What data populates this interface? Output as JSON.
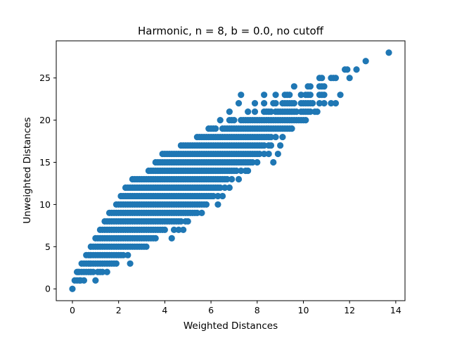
{
  "chart_data": {
    "type": "scatter",
    "title": "Harmonic, n = 8, b = 0.0, no cutoff",
    "xlabel": "Weighted Distances",
    "ylabel": "Unweighted Distances",
    "xlim": [
      -0.7,
      14.4
    ],
    "ylim": [
      -1.4,
      29.4
    ],
    "xticks": [
      0,
      2,
      4,
      6,
      8,
      10,
      12,
      14
    ],
    "yticks": [
      0,
      5,
      10,
      15,
      20,
      25
    ],
    "xtick_labels": [
      "0",
      "2",
      "4",
      "6",
      "8",
      "10",
      "12",
      "14"
    ],
    "ytick_labels": [
      "0",
      "5",
      "10",
      "15",
      "20",
      "25"
    ],
    "marker_color": "#1f77b4",
    "grid": false,
    "legend": "none",
    "rows": [
      {
        "y": 0,
        "x": [
          0.0
        ]
      },
      {
        "y": 1,
        "x": [
          0.1,
          0.2,
          0.3,
          0.35,
          0.5,
          1.0
        ]
      },
      {
        "y": 2,
        "x": [
          0.2,
          0.25,
          0.3,
          0.4,
          0.5,
          0.6,
          0.7,
          0.8,
          0.9,
          1.1,
          1.2,
          1.3,
          1.5
        ]
      },
      {
        "y": 3,
        "x": [
          0.4,
          0.5,
          0.6,
          0.7,
          0.8,
          0.9,
          1.0,
          1.1,
          1.2,
          1.3,
          1.4,
          1.5,
          1.6,
          1.7,
          1.8,
          1.9,
          2.5
        ]
      },
      {
        "y": 4,
        "x": [
          0.6,
          0.7,
          0.8,
          0.9,
          1.0,
          1.1,
          1.2,
          1.3,
          1.4,
          1.5,
          1.6,
          1.7,
          1.8,
          1.9,
          2.0,
          2.1,
          2.2,
          2.4
        ]
      },
      {
        "y": 5,
        "x": [
          0.8,
          0.9,
          1.0,
          1.1,
          1.2,
          1.3,
          1.4,
          1.5,
          1.6,
          1.7,
          1.8,
          1.9,
          2.0,
          2.1,
          2.2,
          2.3,
          2.4,
          2.5,
          2.6,
          2.7,
          2.8,
          2.9,
          3.0,
          3.1,
          3.2
        ]
      },
      {
        "y": 6,
        "x": [
          1.0,
          1.1,
          1.2,
          1.3,
          1.4,
          1.5,
          1.6,
          1.7,
          1.8,
          1.9,
          2.0,
          2.1,
          2.2,
          2.3,
          2.4,
          2.5,
          2.6,
          2.7,
          2.8,
          2.9,
          3.0,
          3.1,
          3.2,
          3.3,
          3.4,
          3.5,
          3.6,
          4.3
        ]
      },
      {
        "y": 7,
        "x": [
          1.2,
          1.3,
          1.4,
          1.5,
          1.6,
          1.7,
          1.8,
          1.9,
          2.0,
          2.1,
          2.2,
          2.3,
          2.4,
          2.5,
          2.6,
          2.7,
          2.8,
          2.9,
          3.0,
          3.1,
          3.2,
          3.3,
          3.4,
          3.5,
          3.6,
          3.7,
          3.8,
          3.9,
          4.0,
          4.4,
          4.6,
          4.8
        ]
      },
      {
        "y": 8,
        "x": [
          1.4,
          1.5,
          1.6,
          1.7,
          1.8,
          1.9,
          2.0,
          2.1,
          2.2,
          2.3,
          2.4,
          2.5,
          2.6,
          2.7,
          2.8,
          2.9,
          3.0,
          3.1,
          3.2,
          3.3,
          3.4,
          3.5,
          3.6,
          3.7,
          3.8,
          3.9,
          4.0,
          4.1,
          4.2,
          4.3,
          4.4,
          4.5,
          4.6,
          4.7,
          4.9,
          5.0
        ]
      },
      {
        "y": 9,
        "x": [
          1.6,
          1.7,
          1.8,
          1.9,
          2.0,
          2.1,
          2.2,
          2.3,
          2.4,
          2.5,
          2.6,
          2.7,
          2.8,
          2.9,
          3.0,
          3.1,
          3.2,
          3.3,
          3.4,
          3.5,
          3.6,
          3.7,
          3.8,
          3.9,
          4.0,
          4.1,
          4.2,
          4.3,
          4.4,
          4.5,
          4.6,
          4.7,
          4.8,
          4.9,
          5.0,
          5.1,
          5.2,
          5.3,
          5.4,
          5.6
        ]
      },
      {
        "y": 10,
        "x": [
          1.9,
          2.0,
          2.1,
          2.2,
          2.3,
          2.4,
          2.5,
          2.6,
          2.7,
          2.8,
          2.9,
          3.0,
          3.1,
          3.2,
          3.3,
          3.4,
          3.5,
          3.6,
          3.7,
          3.8,
          3.9,
          4.0,
          4.1,
          4.2,
          4.3,
          4.4,
          4.5,
          4.6,
          4.7,
          4.8,
          4.9,
          5.0,
          5.1,
          5.2,
          5.3,
          5.4,
          5.5,
          5.6,
          5.7,
          5.8,
          6.3
        ]
      },
      {
        "y": 11,
        "x": [
          2.1,
          2.2,
          2.3,
          2.4,
          2.5,
          2.6,
          2.7,
          2.8,
          2.9,
          3.0,
          3.1,
          3.2,
          3.3,
          3.4,
          3.5,
          3.6,
          3.7,
          3.8,
          3.9,
          4.0,
          4.1,
          4.2,
          4.3,
          4.4,
          4.5,
          4.6,
          4.7,
          4.8,
          4.9,
          5.0,
          5.1,
          5.2,
          5.3,
          5.4,
          5.5,
          5.6,
          5.7,
          5.8,
          5.9,
          6.0,
          6.1,
          6.3,
          6.5
        ]
      },
      {
        "y": 12,
        "x": [
          2.3,
          2.4,
          2.5,
          2.6,
          2.7,
          2.8,
          2.9,
          3.0,
          3.1,
          3.2,
          3.3,
          3.4,
          3.5,
          3.6,
          3.7,
          3.8,
          3.9,
          4.0,
          4.1,
          4.2,
          4.3,
          4.4,
          4.5,
          4.6,
          4.7,
          4.8,
          4.9,
          5.0,
          5.1,
          5.2,
          5.3,
          5.4,
          5.5,
          5.6,
          5.7,
          5.8,
          5.9,
          6.0,
          6.1,
          6.2,
          6.3,
          6.4,
          6.6,
          6.8
        ]
      },
      {
        "y": 13,
        "x": [
          2.6,
          2.7,
          2.8,
          2.9,
          3.0,
          3.1,
          3.2,
          3.3,
          3.4,
          3.5,
          3.6,
          3.7,
          3.8,
          3.9,
          4.0,
          4.1,
          4.2,
          4.3,
          4.4,
          4.5,
          4.6,
          4.7,
          4.8,
          4.9,
          5.0,
          5.1,
          5.2,
          5.3,
          5.4,
          5.5,
          5.6,
          5.7,
          5.8,
          5.9,
          6.0,
          6.1,
          6.2,
          6.3,
          6.4,
          6.5,
          6.6,
          6.7,
          6.9,
          7.2
        ]
      },
      {
        "y": 14,
        "x": [
          3.3,
          3.4,
          3.5,
          3.6,
          3.7,
          3.8,
          3.9,
          4.0,
          4.1,
          4.2,
          4.3,
          4.4,
          4.5,
          4.6,
          4.7,
          4.8,
          4.9,
          5.0,
          5.1,
          5.2,
          5.3,
          5.4,
          5.5,
          5.6,
          5.7,
          5.8,
          5.9,
          6.0,
          6.1,
          6.2,
          6.3,
          6.4,
          6.5,
          6.6,
          6.7,
          6.8,
          6.9,
          7.0,
          7.1,
          7.3,
          7.5,
          7.6
        ]
      },
      {
        "y": 15,
        "x": [
          3.6,
          3.7,
          3.8,
          3.9,
          4.0,
          4.1,
          4.2,
          4.3,
          4.4,
          4.5,
          4.6,
          4.7,
          4.8,
          4.9,
          5.0,
          5.1,
          5.2,
          5.3,
          5.4,
          5.5,
          5.6,
          5.7,
          5.8,
          5.9,
          6.0,
          6.1,
          6.2,
          6.3,
          6.4,
          6.5,
          6.6,
          6.7,
          6.8,
          6.9,
          7.0,
          7.1,
          7.2,
          7.3,
          7.4,
          7.5,
          7.6,
          7.7,
          7.8,
          8.0,
          8.7
        ]
      },
      {
        "y": 16,
        "x": [
          3.9,
          4.0,
          4.1,
          4.2,
          4.3,
          4.4,
          4.5,
          4.6,
          4.7,
          4.8,
          4.9,
          5.0,
          5.1,
          5.2,
          5.3,
          5.4,
          5.5,
          5.6,
          5.7,
          5.8,
          5.9,
          6.0,
          6.1,
          6.2,
          6.3,
          6.4,
          6.5,
          6.6,
          6.7,
          6.8,
          6.9,
          7.0,
          7.1,
          7.2,
          7.3,
          7.4,
          7.5,
          7.6,
          7.7,
          7.8,
          7.9,
          8.0,
          8.1,
          8.3,
          8.5,
          8.9
        ]
      },
      {
        "y": 17,
        "x": [
          4.7,
          4.8,
          4.9,
          5.0,
          5.1,
          5.2,
          5.3,
          5.4,
          5.5,
          5.6,
          5.7,
          5.8,
          5.9,
          6.0,
          6.1,
          6.2,
          6.3,
          6.4,
          6.5,
          6.6,
          6.7,
          6.8,
          6.9,
          7.0,
          7.1,
          7.2,
          7.3,
          7.4,
          7.5,
          7.6,
          7.7,
          7.8,
          7.9,
          8.0,
          8.1,
          8.2,
          8.3,
          8.5,
          8.6,
          9.0
        ]
      },
      {
        "y": 18,
        "x": [
          5.4,
          5.5,
          5.6,
          5.7,
          5.8,
          5.9,
          6.0,
          6.1,
          6.2,
          6.3,
          6.4,
          6.5,
          6.6,
          6.7,
          6.8,
          6.9,
          7.0,
          7.1,
          7.2,
          7.3,
          7.4,
          7.5,
          7.6,
          7.7,
          7.8,
          7.9,
          8.0,
          8.1,
          8.2,
          8.3,
          8.4,
          8.5,
          8.6,
          8.8,
          9.1
        ]
      },
      {
        "y": 19,
        "x": [
          5.9,
          6.0,
          6.1,
          6.2,
          6.5,
          6.6,
          6.7,
          6.8,
          6.9,
          7.0,
          7.1,
          7.2,
          7.3,
          7.4,
          7.5,
          7.6,
          7.7,
          7.8,
          7.9,
          8.0,
          8.1,
          8.2,
          8.3,
          8.4,
          8.5,
          8.6,
          8.7,
          8.8,
          8.9,
          9.0,
          9.1,
          9.2,
          9.3,
          9.4,
          9.5
        ]
      },
      {
        "y": 20,
        "x": [
          6.4,
          6.8,
          6.9,
          7.0,
          7.3,
          7.4,
          7.5,
          7.6,
          7.7,
          7.8,
          7.9,
          8.0,
          8.1,
          8.2,
          8.3,
          8.4,
          8.5,
          8.6,
          8.7,
          8.8,
          8.9,
          9.0,
          9.1,
          9.2,
          9.3,
          9.4,
          9.5,
          9.6,
          9.7,
          9.8,
          9.9,
          10.0,
          10.1
        ]
      },
      {
        "y": 21,
        "x": [
          6.8,
          7.6,
          7.9,
          8.3,
          8.4,
          8.5,
          8.6,
          8.8,
          8.9,
          9.0,
          9.1,
          9.2,
          9.3,
          9.4,
          9.5,
          9.6,
          9.7,
          9.9,
          10.0,
          10.1,
          10.2,
          10.3,
          10.5,
          10.6
        ]
      },
      {
        "y": 22,
        "x": [
          7.2,
          7.9,
          8.3,
          8.7,
          8.8,
          9.1,
          9.2,
          9.3,
          9.4,
          9.5,
          9.6,
          9.9,
          10.0,
          10.1,
          10.2,
          10.3,
          10.4,
          10.7,
          10.9,
          11.2,
          11.4
        ]
      },
      {
        "y": 23,
        "x": [
          7.3,
          8.3,
          8.8,
          9.2,
          9.3,
          9.4,
          9.9,
          10.1,
          10.2,
          10.3,
          10.7,
          10.8,
          10.9,
          11.6
        ]
      },
      {
        "y": 24,
        "x": [
          9.6,
          10.2,
          10.3,
          10.7,
          10.8,
          10.9
        ]
      },
      {
        "y": 25,
        "x": [
          10.7,
          10.8,
          11.2,
          11.3,
          11.4,
          12.0
        ]
      },
      {
        "y": 26,
        "x": [
          11.8,
          11.9,
          12.3
        ]
      },
      {
        "y": 27,
        "x": [
          12.7
        ]
      },
      {
        "y": 28,
        "x": [
          13.7
        ]
      }
    ]
  }
}
